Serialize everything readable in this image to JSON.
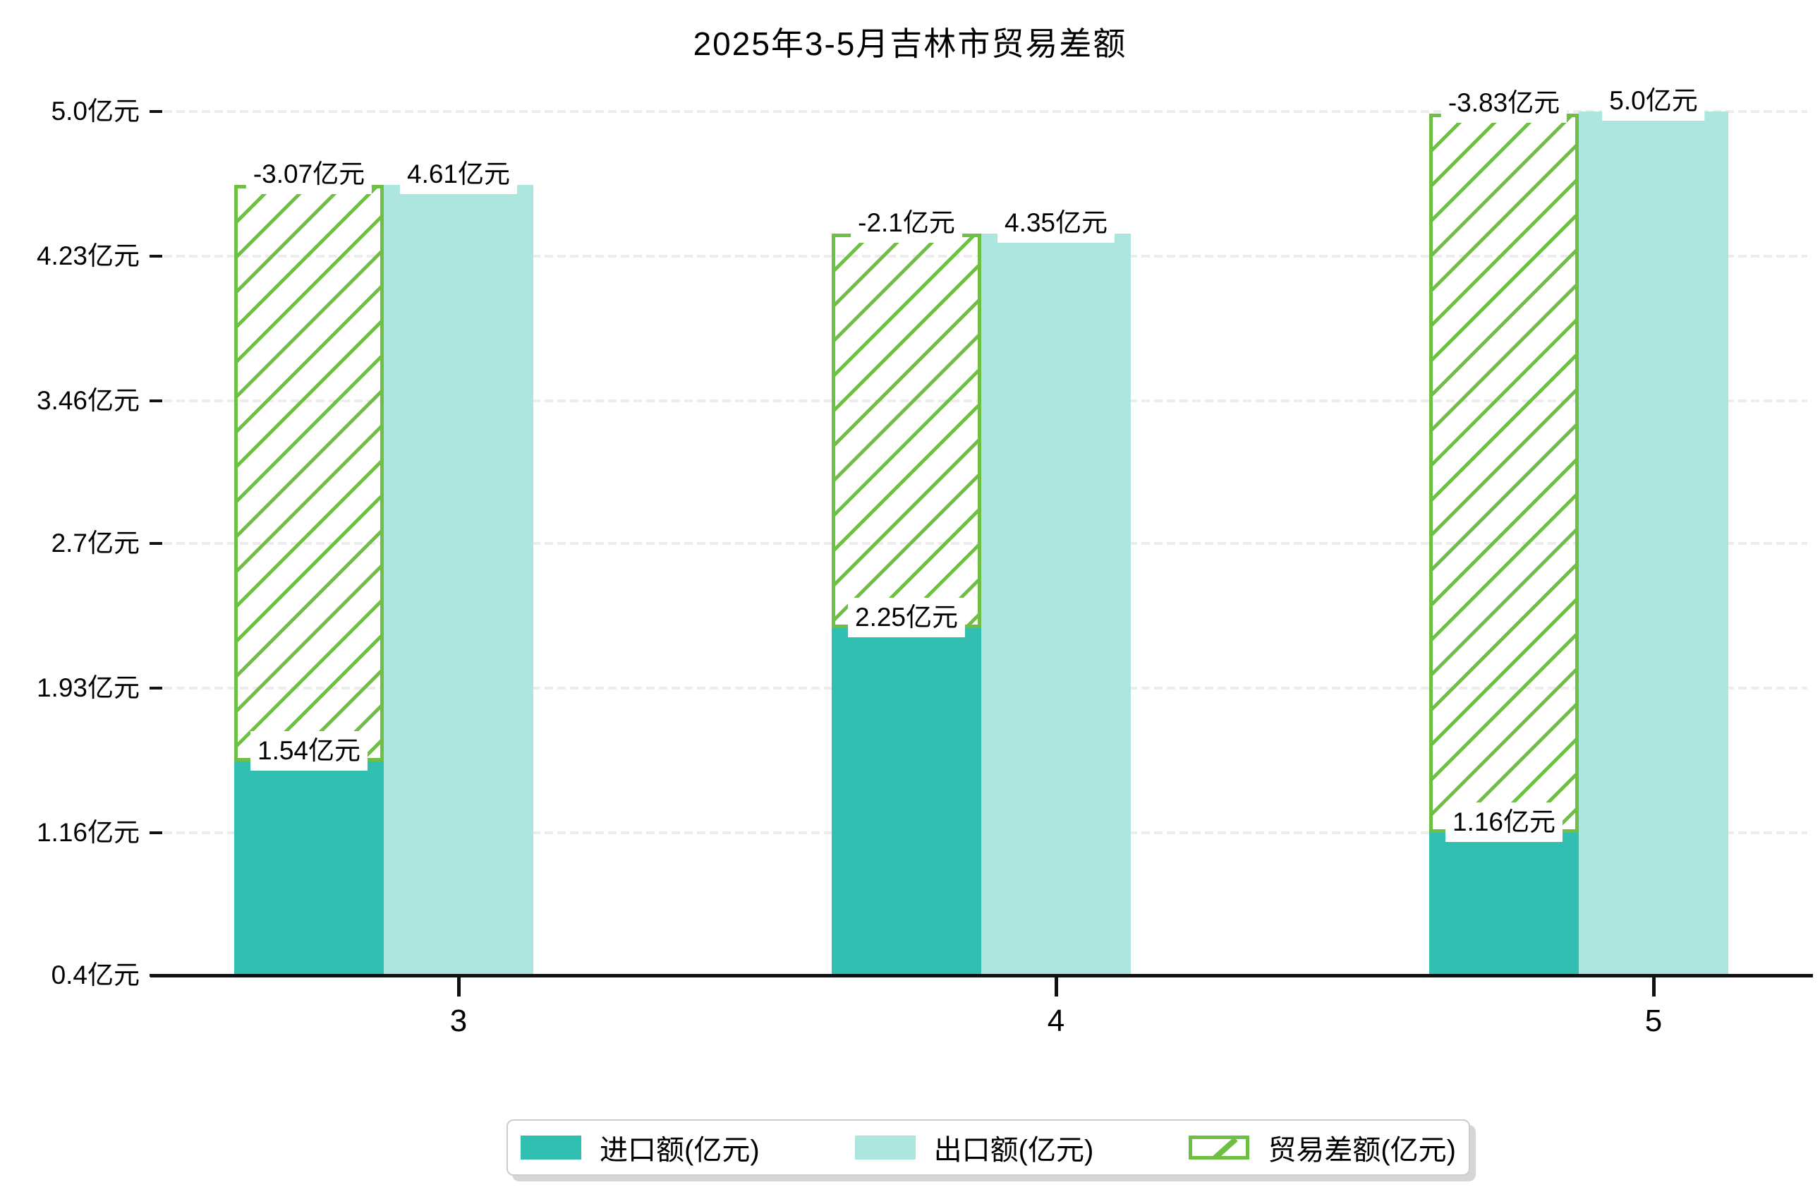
{
  "title": "2025年3-5月吉林市贸易差额",
  "chart_data": {
    "type": "bar",
    "title": "2025年3-5月吉林市贸易差额",
    "categories": [
      "3",
      "4",
      "5"
    ],
    "series": [
      {
        "name": "进口额(亿元)",
        "role": "import",
        "values": [
          1.54,
          2.25,
          1.16
        ],
        "labels": [
          "1.54亿元",
          "2.25亿元",
          "1.16亿元"
        ],
        "color": "#31bfb1",
        "style": "solid"
      },
      {
        "name": "出口额(亿元)",
        "role": "export",
        "values": [
          4.61,
          4.35,
          5.0
        ],
        "labels": [
          "4.61亿元",
          "4.35亿元",
          "5.0亿元"
        ],
        "color": "#ace6df",
        "style": "solid"
      },
      {
        "name": "贸易差额(亿元)",
        "role": "balance",
        "values": [
          -3.07,
          -2.1,
          -3.83
        ],
        "labels": [
          "-3.07亿元",
          "-2.1亿元",
          "-3.83亿元"
        ],
        "color": "#6fbf44",
        "style": "hatch-outline",
        "stacked_on": "import"
      }
    ],
    "x_axis": {
      "tick_labels": [
        "3",
        "4",
        "5"
      ]
    },
    "y_axis": {
      "min": 0.4,
      "max": 5.0,
      "tick_values": [
        0.4,
        1.16,
        1.93,
        2.7,
        3.46,
        4.23,
        5.0
      ],
      "tick_labels": [
        "0.4亿元",
        "1.16亿元",
        "1.93亿元",
        "2.7亿元",
        "3.46亿元",
        "4.23亿元",
        "5.0亿元"
      ]
    },
    "grid": "horizontal-dashed",
    "legend_position": "bottom"
  },
  "legend": {
    "items": [
      {
        "label": "进口额(亿元)",
        "swatch": "solid-teal"
      },
      {
        "label": "出口额(亿元)",
        "swatch": "solid-light-teal"
      },
      {
        "label": "贸易差额(亿元)",
        "swatch": "green-hatch-outline"
      }
    ]
  },
  "colors": {
    "import": "#31bfb1",
    "export": "#ace6df",
    "balance_green": "#6fbf44",
    "grid": "#ececec",
    "axis": "#111111",
    "legend_shadow": "#d6d6d6"
  }
}
